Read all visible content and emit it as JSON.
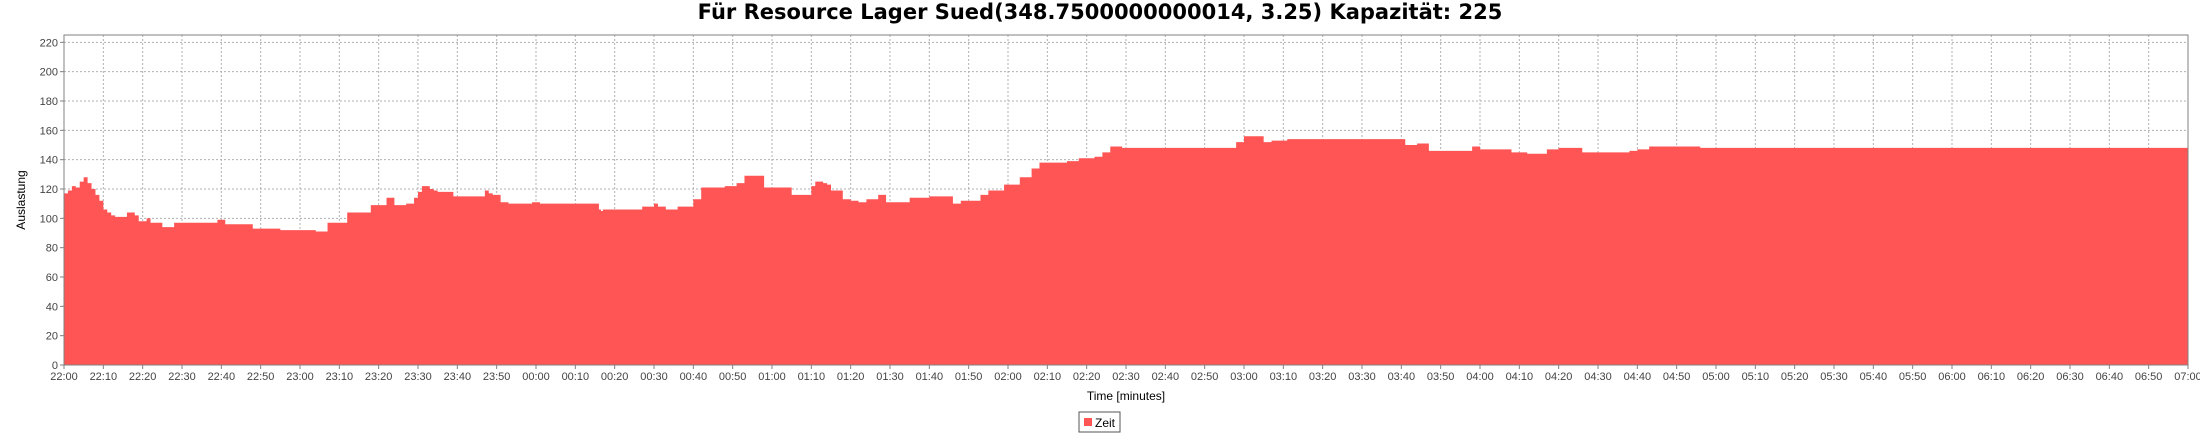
{
  "chart_data": {
    "type": "area",
    "title": "Für Resource Lager Sued(348.7500000000014, 3.25) Kapazität: 225",
    "xlabel": "Time [minutes]",
    "ylabel": "Auslastung",
    "ylim": [
      0,
      225
    ],
    "y_ticks": [
      0,
      20,
      40,
      60,
      80,
      100,
      120,
      140,
      160,
      180,
      200,
      220
    ],
    "xlim_minutes": [
      0,
      540
    ],
    "x_tick_labels": [
      "22:00",
      "22:10",
      "22:20",
      "22:30",
      "22:40",
      "22:50",
      "23:00",
      "23:10",
      "23:20",
      "23:30",
      "23:40",
      "23:50",
      "00:00",
      "00:10",
      "00:20",
      "00:30",
      "00:40",
      "00:50",
      "01:00",
      "01:10",
      "01:20",
      "01:30",
      "01:40",
      "01:50",
      "02:00",
      "02:10",
      "02:20",
      "02:30",
      "02:40",
      "02:50",
      "03:00",
      "03:10",
      "03:20",
      "03:30",
      "03:40",
      "03:50",
      "04:00",
      "04:10",
      "04:20",
      "04:30",
      "04:40",
      "04:50",
      "05:00",
      "05:10",
      "05:20",
      "05:30",
      "05:40",
      "05:50",
      "06:00",
      "06:10",
      "06:20",
      "06:30",
      "06:40",
      "06:50",
      "07:00"
    ],
    "grid": true,
    "legend": "bottom-center",
    "series": [
      {
        "name": "Zeit",
        "color": "#ff5555",
        "x": [
          0,
          1,
          2,
          3,
          4,
          5,
          6,
          7,
          8,
          9,
          10,
          11,
          12,
          13,
          16,
          18,
          19,
          21,
          22,
          25,
          26,
          28,
          32,
          35,
          36,
          39,
          41,
          46,
          48,
          53,
          55,
          64,
          67,
          72,
          75,
          78,
          79,
          82,
          84,
          87,
          89,
          90,
          91,
          93,
          94,
          95,
          99,
          100,
          101,
          104,
          107,
          108,
          109,
          111,
          113,
          116,
          118,
          119,
          121,
          128,
          129,
          133,
          136,
          136.5,
          137,
          147,
          150,
          151,
          153,
          156,
          160,
          162,
          164,
          168,
          171,
          173,
          178,
          185,
          190,
          191,
          192,
          193,
          194,
          195,
          198,
          200,
          202,
          204,
          207,
          209,
          213,
          215,
          217,
          218,
          220,
          226,
          228,
          233,
          235,
          239,
          243,
          246,
          248,
          251,
          255,
          258,
          262,
          264,
          266,
          269,
          273,
          278,
          282,
          292,
          298,
          300,
          305,
          307,
          311,
          320,
          327,
          330,
          341,
          344,
          347,
          358,
          360,
          363,
          368,
          370,
          372,
          374,
          377,
          380,
          383,
          386,
          389,
          391,
          393,
          395,
          398,
          400,
          403,
          406,
          416,
          540
        ],
        "y": [
          117,
          119,
          122,
          121,
          125,
          128,
          124,
          120,
          116,
          112,
          106,
          104,
          102,
          101,
          104,
          102,
          98,
          100,
          97,
          94,
          94,
          97,
          97,
          97,
          97,
          99,
          96,
          96,
          93,
          93,
          92,
          91,
          97,
          104,
          104,
          109,
          109,
          114,
          109,
          110,
          114,
          118,
          122,
          120,
          119,
          118,
          115,
          115,
          115,
          115,
          119,
          117,
          116,
          111,
          110,
          110,
          110,
          111,
          110,
          110,
          110,
          110,
          106,
          105,
          106,
          108,
          110,
          108,
          106,
          108,
          113,
          121,
          121,
          122,
          124,
          129,
          121,
          116,
          122,
          125,
          125,
          124,
          123,
          119,
          113,
          112,
          111,
          113,
          116,
          111,
          111,
          114,
          114,
          114,
          115,
          110,
          112,
          116,
          119,
          123,
          128,
          134,
          138,
          138,
          139,
          141,
          142,
          145,
          149,
          148,
          148,
          148,
          148,
          148,
          152,
          156,
          152,
          153,
          154,
          154,
          154,
          154,
          150,
          151,
          146,
          149,
          147,
          147,
          145,
          145,
          144,
          144,
          147,
          148,
          148,
          145,
          145,
          145,
          145,
          145,
          146,
          147,
          149,
          149,
          148,
          144
        ]
      }
    ]
  }
}
